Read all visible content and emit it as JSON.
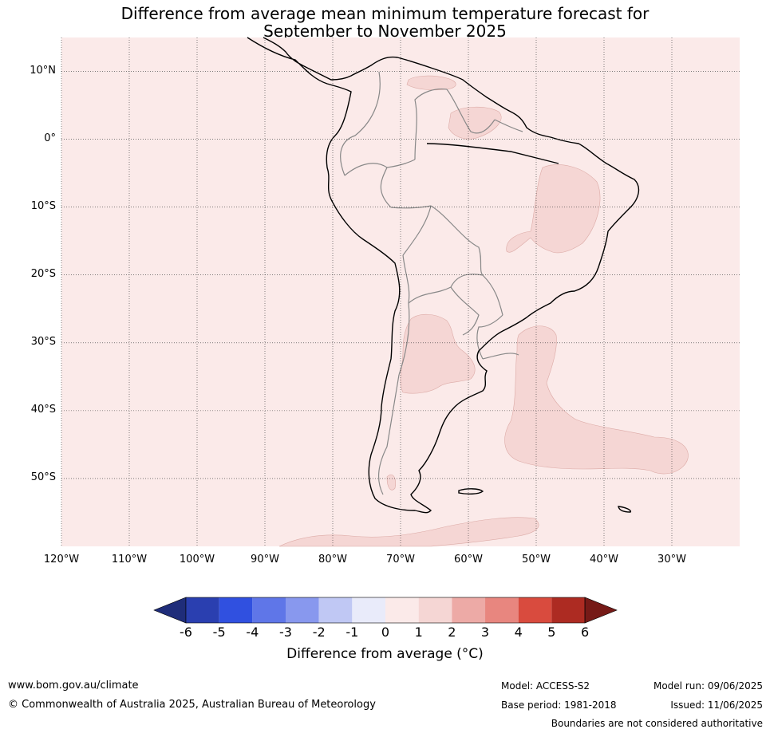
{
  "title_line1": "Difference from average mean minimum temperature forecast for",
  "title_line2": "September to November 2025",
  "latitude_labels": [
    "10°N",
    "0°",
    "10°S",
    "20°S",
    "30°S",
    "40°S",
    "50°S"
  ],
  "longitude_labels": [
    "120°W",
    "110°W",
    "100°W",
    "90°W",
    "80°W",
    "70°W",
    "60°W",
    "50°W",
    "40°W",
    "30°W"
  ],
  "map_extent": {
    "lon_min": -120,
    "lon_max": -20,
    "lat_min": -60,
    "lat_max": 15
  },
  "colorbar": {
    "ticks": [
      "-6",
      "-5",
      "-4",
      "-3",
      "-2",
      "-1",
      "0",
      "1",
      "2",
      "3",
      "4",
      "5",
      "6"
    ],
    "colors": [
      "#1f2d7a",
      "#2a3fb0",
      "#3050e0",
      "#5f76e8",
      "#8898ee",
      "#c0c8f4",
      "#e9ebfa",
      "#fbeae9",
      "#f5d6d4",
      "#edaaa6",
      "#e8867f",
      "#d94b3e",
      "#ad2b22",
      "#761a17"
    ],
    "label": "Difference from average (°C)"
  },
  "background_fill": "#fbeae9",
  "warm_patch_fill": "#f5d6d4",
  "footer": {
    "website": "www.bom.gov.au/climate",
    "copyright": "© Commonwealth of Australia 2025, Australian Bureau of Meteorology",
    "model": "Model: ACCESS-S2",
    "base_period": "Base period: 1981-2018",
    "model_run": "Model run: 09/06/2025",
    "issued": "Issued: 11/06/2025",
    "disclaimer": "Boundaries are not considered authoritative"
  }
}
